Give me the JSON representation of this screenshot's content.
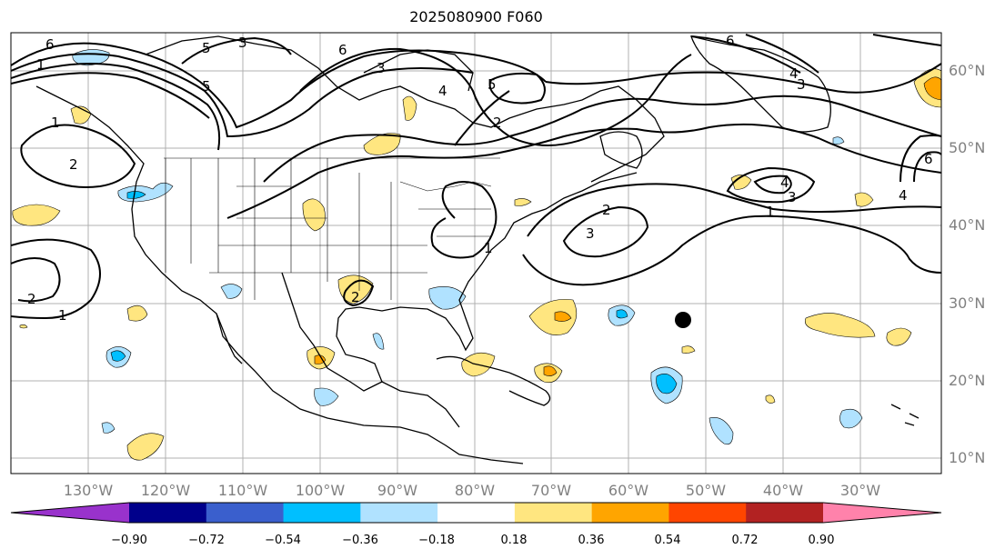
{
  "title": "2025080900 F060",
  "lat_labels": [
    "60°N",
    "50°N",
    "40°N",
    "30°N",
    "20°N",
    "10°N"
  ],
  "lon_labels": [
    "130°W",
    "120°W",
    "110°W",
    "100°W",
    "90°W",
    "80°W",
    "70°W",
    "60°W",
    "50°W",
    "40°W",
    "30°W"
  ],
  "colorbar": {
    "ticks": [
      "−0.90",
      "−0.72",
      "−0.54",
      "−0.36",
      "−0.18",
      "0.18",
      "0.36",
      "0.54",
      "0.72",
      "0.90"
    ],
    "colors": [
      "#9932cc",
      "#00008b",
      "#3a5fcd",
      "#00bfff",
      "#b0e2ff",
      "#ffffff",
      "#ffe680",
      "#ffa500",
      "#ff4500",
      "#b22222",
      "#ff82ab"
    ]
  },
  "contour_labels": [
    "6",
    "5",
    "3",
    "6",
    "3",
    "4",
    "5",
    "2",
    "1",
    "2",
    "5",
    "6",
    "4",
    "3",
    "4",
    "3",
    "1",
    "2",
    "3",
    "2",
    "1",
    "2",
    "1",
    "4",
    "1",
    "6"
  ],
  "marker": "storm-position-dot"
}
